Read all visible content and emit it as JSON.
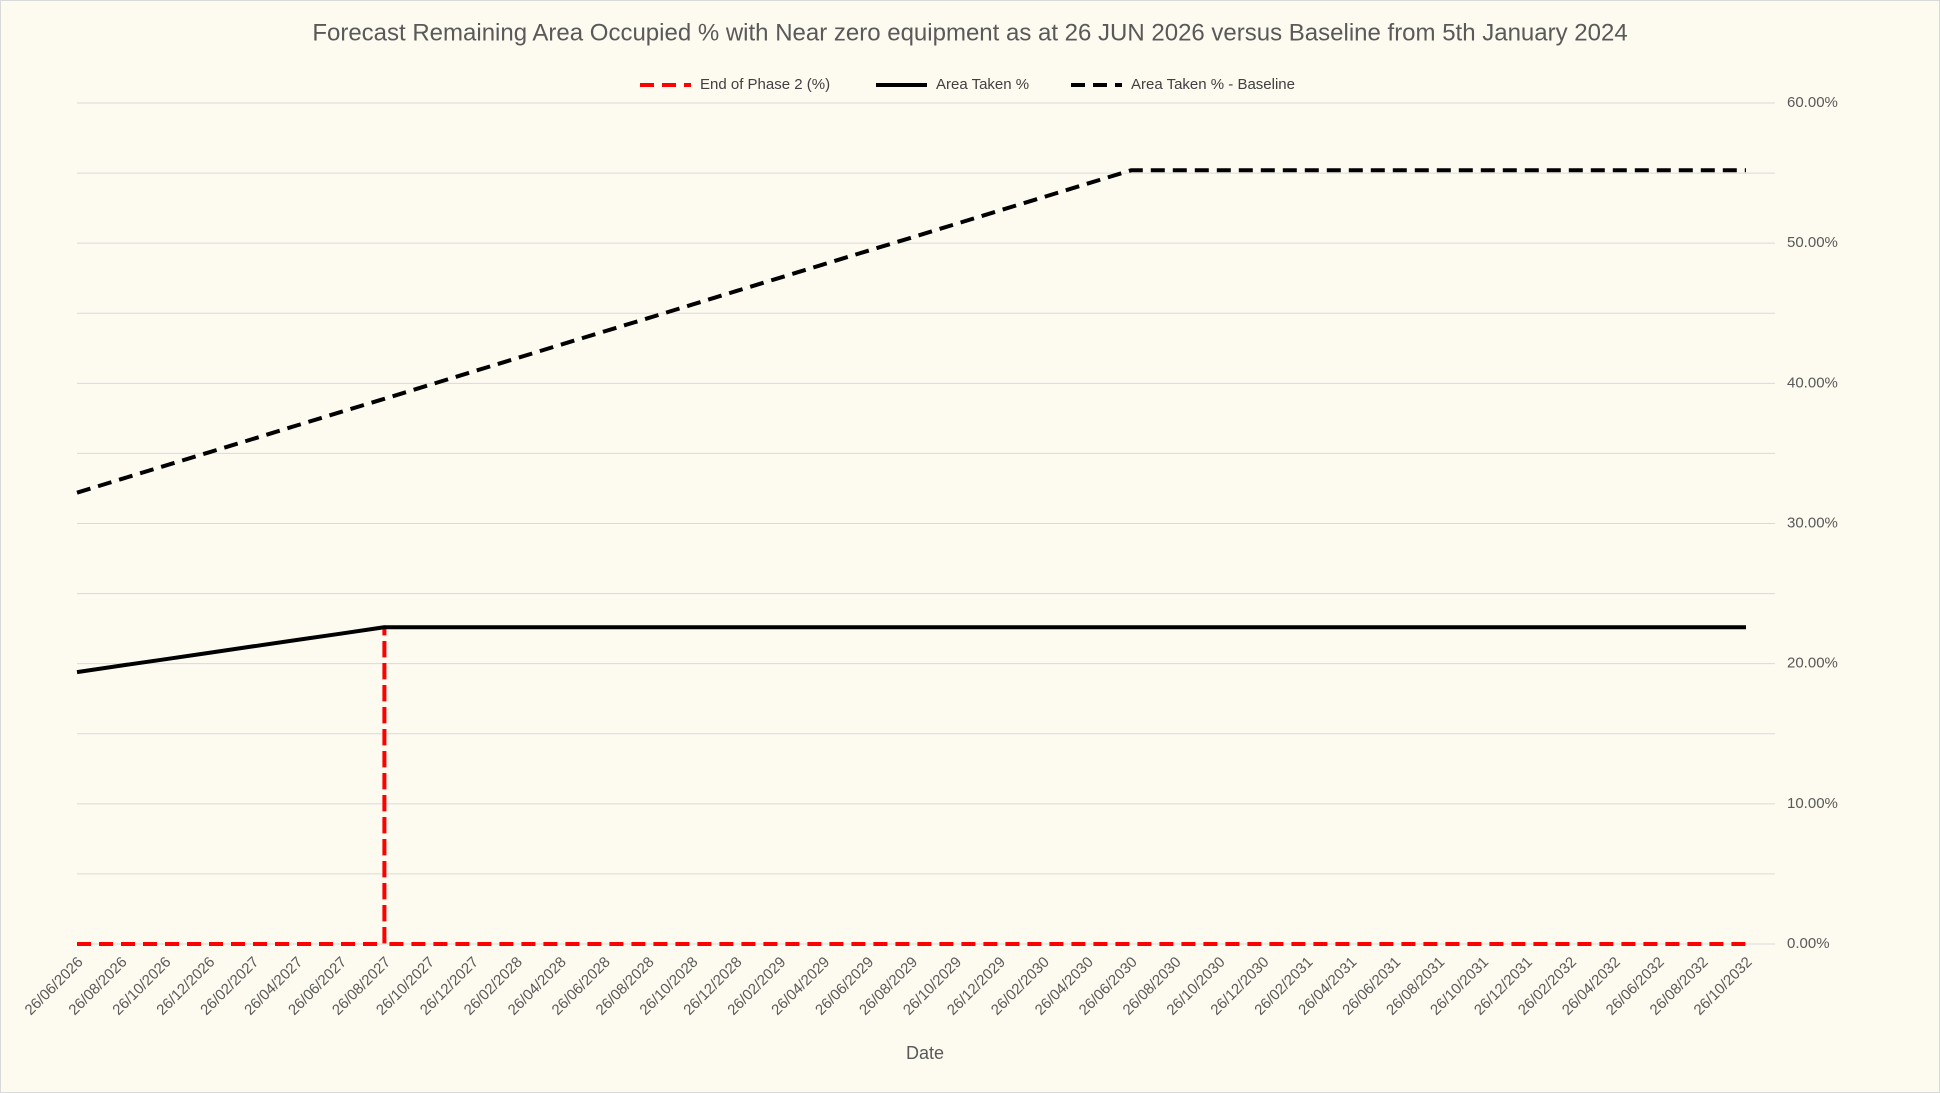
{
  "chart_data": {
    "type": "line",
    "title": "Forecast Remaining Area Occupied % with Near zero equipment as at 26 JUN 2026 versus Baseline from 5th January 2024",
    "x_label": "Date",
    "categories": [
      "26/06/2026",
      "26/08/2026",
      "26/10/2026",
      "26/12/2026",
      "26/02/2027",
      "26/04/2027",
      "26/06/2027",
      "26/08/2027",
      "26/10/2027",
      "26/12/2027",
      "26/02/2028",
      "26/04/2028",
      "26/06/2028",
      "26/08/2028",
      "26/10/2028",
      "26/12/2028",
      "26/02/2029",
      "26/04/2029",
      "26/06/2029",
      "26/08/2029",
      "26/10/2029",
      "26/12/2029",
      "26/02/2030",
      "26/04/2030",
      "26/06/2030",
      "26/08/2030",
      "26/10/2030",
      "26/12/2030",
      "26/02/2031",
      "26/04/2031",
      "26/06/2031",
      "26/08/2031",
      "26/10/2031",
      "26/12/2031",
      "26/02/2032",
      "26/04/2032",
      "26/06/2032",
      "26/08/2032",
      "26/10/2032"
    ],
    "series": [
      {
        "name": "End of Phase 2 (%)",
        "color": "#ff0000",
        "dash": true,
        "x": [
          "26/06/2026",
          "26/08/2027",
          "26/08/2027",
          "26/08/2027",
          "26/10/2032"
        ],
        "values": [
          0,
          0,
          22.6,
          0,
          0
        ]
      },
      {
        "name": "Area Taken %",
        "color": "#000000",
        "dash": false,
        "values": [
          19.4,
          19.86,
          20.31,
          20.77,
          21.23,
          21.69,
          22.14,
          22.6,
          22.6,
          22.6,
          22.6,
          22.6,
          22.6,
          22.6,
          22.6,
          22.6,
          22.6,
          22.6,
          22.6,
          22.6,
          22.6,
          22.6,
          22.6,
          22.6,
          22.6,
          22.6,
          22.6,
          22.6,
          22.6,
          22.6,
          22.6,
          22.6,
          22.6,
          22.6,
          22.6,
          22.6,
          22.6,
          22.6,
          22.6
        ]
      },
      {
        "name": "Area Taken % - Baseline",
        "color": "#000000",
        "dash": true,
        "values": [
          32.2,
          33.16,
          34.12,
          35.07,
          36.03,
          36.99,
          37.95,
          38.9,
          39.86,
          40.82,
          41.78,
          42.74,
          43.7,
          44.65,
          45.61,
          46.57,
          47.53,
          48.49,
          49.45,
          50.4,
          51.36,
          52.32,
          53.28,
          54.24,
          55.2,
          55.2,
          55.2,
          55.2,
          55.2,
          55.2,
          55.2,
          55.2,
          55.2,
          55.2,
          55.2,
          55.2,
          55.2,
          55.2,
          55.2
        ]
      }
    ],
    "ylim": [
      0,
      60
    ],
    "yticks": [
      {
        "value": 0,
        "label": "0.00%"
      },
      {
        "value": 10,
        "label": "10.00%"
      },
      {
        "value": 20,
        "label": "20.00%"
      },
      {
        "value": 30,
        "label": "30.00%"
      },
      {
        "value": 40,
        "label": "40.00%"
      },
      {
        "value": 50,
        "label": "50.00%"
      },
      {
        "value": 60,
        "label": "60.00%"
      }
    ],
    "y_minor_gridlines": [
      5,
      15,
      25,
      35,
      45,
      55
    ],
    "y_axis_side": "right",
    "grid": true,
    "legend": "top"
  }
}
